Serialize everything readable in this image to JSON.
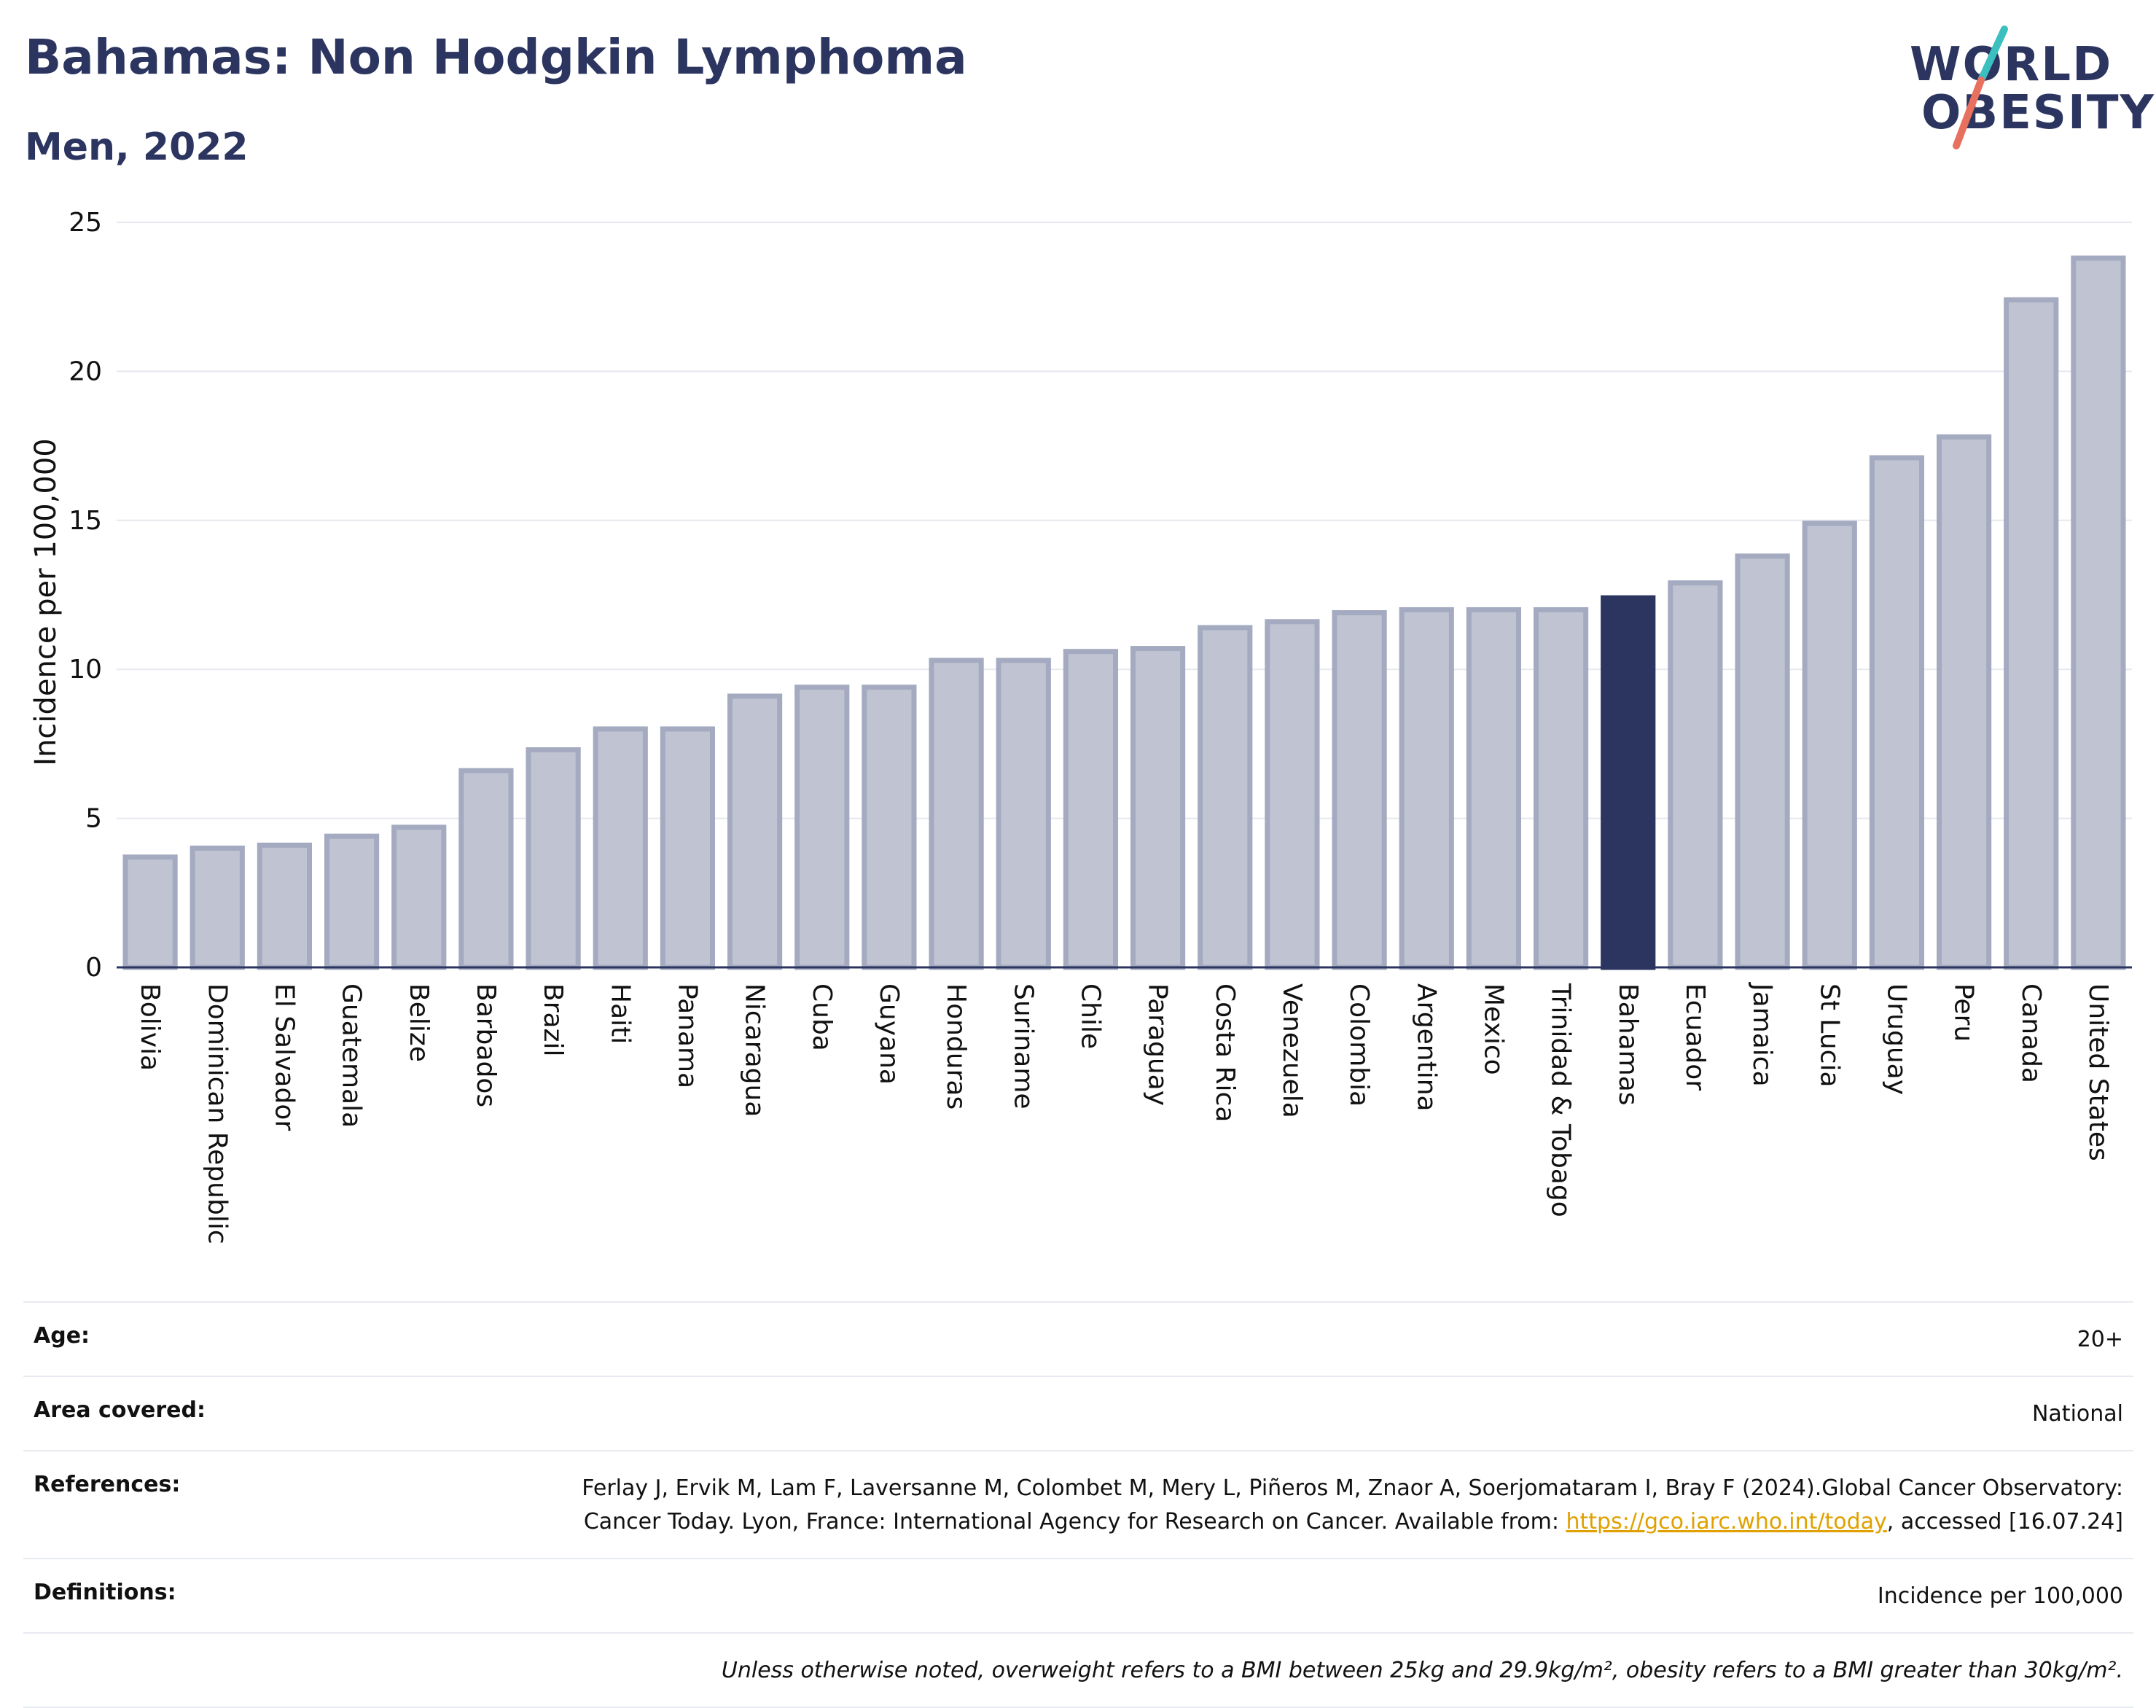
{
  "header": {
    "title": "Bahamas: Non Hodgkin Lymphoma",
    "subtitle": "Men, 2022"
  },
  "logo": {
    "line1": "WORLD",
    "line2": "OBESITY",
    "colors": {
      "navy": "#2b3560",
      "teal": "#3bbfbf",
      "coral": "#e8705f"
    }
  },
  "chart_data": {
    "type": "bar",
    "ylabel": "Incidence per 100,000",
    "ylim": [
      0,
      25
    ],
    "yticks": [
      0,
      5,
      10,
      15,
      20,
      25
    ],
    "grid": true,
    "highlight": "Bahamas",
    "colors": {
      "bar": "#c0c4d2",
      "bar_edge": "#a4aac0",
      "highlight": "#2b3560"
    },
    "categories": [
      "Bolivia",
      "Dominican Republic",
      "El Salvador",
      "Guatemala",
      "Belize",
      "Barbados",
      "Brazil",
      "Haiti",
      "Panama",
      "Nicaragua",
      "Cuba",
      "Guyana",
      "Honduras",
      "Suriname",
      "Chile",
      "Paraguay",
      "Costa Rica",
      "Venezuela",
      "Colombia",
      "Argentina",
      "Mexico",
      "Trinidad & Tobago",
      "Bahamas",
      "Ecuador",
      "Jamaica",
      "St Lucia",
      "Uruguay",
      "Peru",
      "Canada",
      "United States"
    ],
    "values": [
      3.7,
      4.0,
      4.1,
      4.4,
      4.7,
      6.6,
      7.3,
      8.0,
      8.0,
      9.1,
      9.4,
      9.4,
      10.3,
      10.3,
      10.6,
      10.7,
      11.4,
      11.6,
      11.9,
      12.0,
      12.0,
      12.0,
      12.4,
      12.9,
      13.8,
      14.9,
      17.1,
      17.8,
      22.4,
      23.8
    ]
  },
  "meta": {
    "age": {
      "label": "Age:",
      "value": "20+"
    },
    "area": {
      "label": "Area covered:",
      "value": "National"
    },
    "references": {
      "label": "References:",
      "text_before": "Ferlay J, Ervik M, Lam F, Laversanne M, Colombet M, Mery L, Piñeros M, Znaor A, Soerjomataram I, Bray F (2024).Global Cancer Observatory: Cancer Today. Lyon, France: International Agency for Research on Cancer. Available from: ",
      "link": "https://gco.iarc.who.int/today",
      "text_after": ", accessed [16.07.24]"
    },
    "definitions": {
      "label": "Definitions:",
      "value": "Incidence per 100,000"
    },
    "note": "Unless otherwise noted, overweight refers to a BMI between 25kg and 29.9kg/m², obesity refers to a BMI greater than 30kg/m²."
  }
}
